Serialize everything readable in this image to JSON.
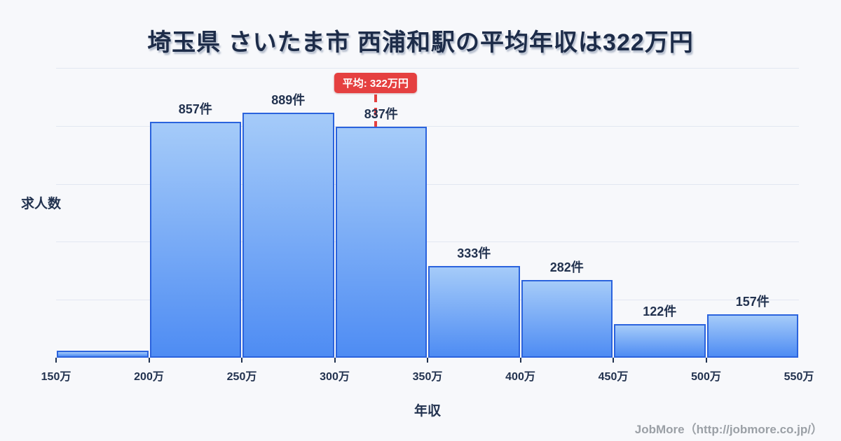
{
  "page": {
    "footer": "JobMore（http://jobmore.co.jp/）"
  },
  "colors": {
    "bg": "#f7f8fb",
    "title": "#1d2c49",
    "text": "#22324f",
    "bar_border": "#2b63dd",
    "bar_top": "#a5cbf9",
    "bar_bottom": "#4e8cf3",
    "grid": "#e2e7f1",
    "red": "#e54040",
    "footer": "#9ba0a6"
  },
  "chart_data": {
    "type": "bar",
    "title": "埼玉県 さいたま市 西浦和駅の平均年収は322万円",
    "xlabel": "年収",
    "ylabel": "求人数",
    "grid": true,
    "x_tick_labels": [
      "150万",
      "200万",
      "250万",
      "300万",
      "350万",
      "400万",
      "450万",
      "500万",
      "550万"
    ],
    "x_range_man_yen": [
      150,
      550
    ],
    "bin_width_man_yen": 50,
    "bars": [
      {
        "range": "150万-200万",
        "count": 25,
        "label": ""
      },
      {
        "range": "200万-250万",
        "count": 857,
        "label": "857件"
      },
      {
        "range": "250万-300万",
        "count": 889,
        "label": "889件"
      },
      {
        "range": "300万-350万",
        "count": 837,
        "label": "837件"
      },
      {
        "range": "350万-400万",
        "count": 333,
        "label": "333件"
      },
      {
        "range": "400万-450万",
        "count": 282,
        "label": "282件"
      },
      {
        "range": "450万-500万",
        "count": 122,
        "label": "122件"
      },
      {
        "range": "500万-550万",
        "count": 157,
        "label": "157件"
      }
    ],
    "average_line": {
      "value_man_yen": 322,
      "label": "平均: 322万円",
      "x_fraction": 0.43
    }
  }
}
